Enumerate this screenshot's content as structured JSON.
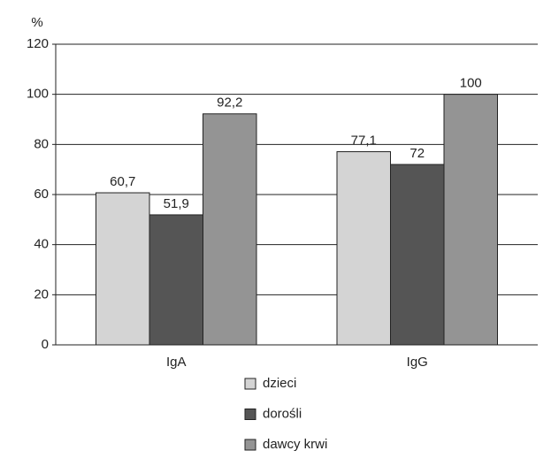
{
  "chart_data": {
    "type": "bar",
    "y_label": "%",
    "categories": [
      "IgA",
      "IgG"
    ],
    "series": [
      {
        "name": "dzieci",
        "color": "#d4d4d4",
        "values": [
          60.7,
          77.1
        ],
        "value_labels": [
          "60,7",
          "77,1"
        ]
      },
      {
        "name": "dorośli",
        "color": "#555555",
        "values": [
          51.9,
          72
        ],
        "value_labels": [
          "51,9",
          "72"
        ]
      },
      {
        "name": "dawcy krwi",
        "color": "#949494",
        "values": [
          92.2,
          100
        ],
        "value_labels": [
          "92,2",
          "100"
        ]
      }
    ],
    "ylim": [
      0,
      120
    ],
    "yticks": [
      0,
      20,
      40,
      60,
      80,
      100,
      120
    ],
    "grid": true
  }
}
